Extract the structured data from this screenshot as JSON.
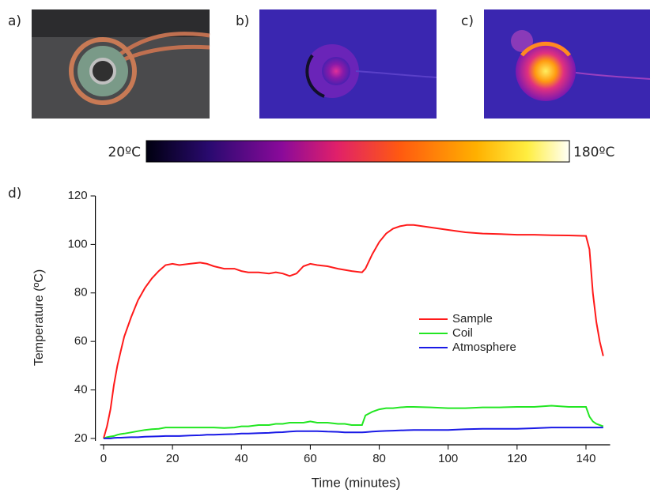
{
  "panel_labels": [
    "a)",
    "b)",
    "c)",
    "d)"
  ],
  "colorbar": {
    "min_label": "20ºC",
    "max_label": "180ºC"
  },
  "chart_data": {
    "type": "line",
    "xlabel": "Time (minutes)",
    "ylabel": "Temperature (ºC)",
    "x": [
      0,
      1,
      2,
      3,
      4,
      5,
      6,
      8,
      10,
      12,
      14,
      16,
      18,
      20,
      22,
      25,
      28,
      30,
      32,
      35,
      38,
      40,
      42,
      45,
      48,
      50,
      52,
      54,
      56,
      58,
      60,
      62,
      65,
      68,
      70,
      72,
      75,
      76,
      78,
      80,
      82,
      84,
      86,
      88,
      90,
      95,
      100,
      105,
      110,
      115,
      120,
      125,
      130,
      135,
      140,
      141,
      142,
      143,
      144,
      145
    ],
    "series": [
      {
        "name": "Sample",
        "color": "#ff1a1a",
        "values": [
          20,
          25,
          32,
          42,
          50,
          56,
          62,
          70,
          77,
          82,
          86,
          89,
          91.5,
          92,
          91.5,
          92,
          92.5,
          92,
          91,
          90,
          90,
          89,
          88.5,
          88.5,
          88,
          88.5,
          88,
          87,
          88,
          91,
          92,
          91.5,
          91,
          90,
          89.5,
          89,
          88.5,
          90,
          96,
          101,
          104.5,
          106.5,
          107.5,
          108,
          108,
          107,
          106,
          105,
          104.5,
          104.3,
          104,
          104,
          103.8,
          103.7,
          103.5,
          98,
          80,
          68,
          60,
          54
        ]
      },
      {
        "name": "Coil",
        "color": "#22e622",
        "values": [
          20,
          20.5,
          20.8,
          21,
          21.5,
          21.8,
          22,
          22.5,
          23,
          23.5,
          23.8,
          24,
          24.5,
          24.5,
          24.5,
          24.5,
          24.5,
          24.5,
          24.5,
          24.3,
          24.5,
          25,
          25,
          25.5,
          25.5,
          26,
          26,
          26.5,
          26.5,
          26.5,
          27,
          26.5,
          26.5,
          26,
          26,
          25.5,
          25.5,
          29.5,
          31,
          32,
          32.5,
          32.5,
          32.8,
          33,
          33,
          32.8,
          32.5,
          32.5,
          32.8,
          32.8,
          33,
          33,
          33.5,
          33,
          33,
          29,
          27,
          26,
          25.5,
          25
        ]
      },
      {
        "name": "Atmosphere",
        "color": "#1a1ae6",
        "values": [
          20,
          20,
          20,
          20.2,
          20.3,
          20.3,
          20.4,
          20.5,
          20.5,
          20.7,
          20.8,
          20.9,
          21,
          21,
          21,
          21.2,
          21.3,
          21.5,
          21.5,
          21.7,
          21.8,
          22,
          22,
          22.2,
          22.3,
          22.5,
          22.6,
          22.8,
          23,
          23,
          23,
          23,
          22.8,
          22.7,
          22.5,
          22.5,
          22.5,
          22.6,
          22.8,
          23,
          23.1,
          23.2,
          23.3,
          23.4,
          23.5,
          23.5,
          23.5,
          23.8,
          24,
          24,
          24,
          24.2,
          24.5,
          24.5,
          24.5,
          24.5,
          24.5,
          24.5,
          24.5,
          24.5
        ]
      }
    ],
    "xlim": [
      -1,
      147
    ],
    "xticks": [
      0,
      20,
      40,
      60,
      80,
      100,
      120,
      140
    ],
    "ylim": [
      19,
      120
    ],
    "yticks": [
      20,
      40,
      60,
      80,
      100,
      120
    ],
    "legend": "right"
  }
}
